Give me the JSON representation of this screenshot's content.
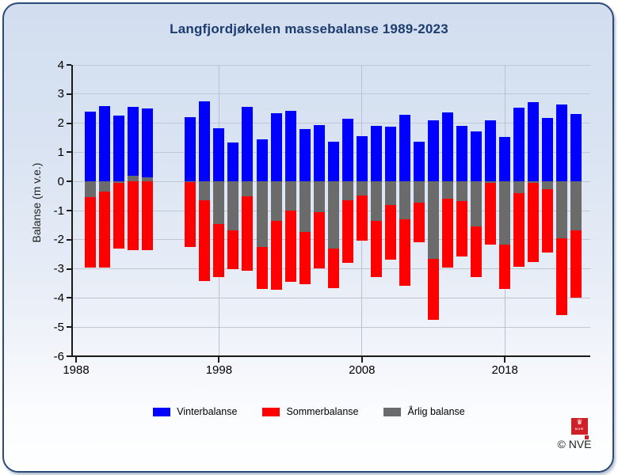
{
  "title": "Langfjordjøkelen massebalanse 1989-2023",
  "y_axis": {
    "label": "Balanse (m v.e.)",
    "ticks": [
      4,
      3,
      2,
      1,
      0,
      -1,
      -2,
      -3,
      -4,
      -5,
      -6
    ]
  },
  "x_axis": {
    "ticks": [
      1988,
      1998,
      2008,
      2018
    ]
  },
  "legend": {
    "items": [
      {
        "label": "Vinterbalanse",
        "color": "#0000fe"
      },
      {
        "label": "Sommerbalanse",
        "color": "#fe0000"
      },
      {
        "label": "Årlig balanse",
        "color": "#6b6b6b"
      }
    ]
  },
  "footer": {
    "copyright": "© NVE",
    "logo_text": "NVE"
  },
  "colors": {
    "winter": "#0000fe",
    "summer": "#fe0000",
    "annual": "#6b6b6b",
    "title": "#1d3c6f",
    "border": "#2c4a7a",
    "gridline": "#bfc7d5",
    "background_top": "#d2deef",
    "background_bottom": "#feffff"
  },
  "chart_data": {
    "type": "bar",
    "title": "Langfjordjøkelen massebalanse 1989-2023",
    "xlabel": "",
    "ylabel": "Balanse (m v.e.)",
    "ylim": [
      -6,
      4
    ],
    "grid": true,
    "legend_position": "bottom",
    "missing_years": [
      1994,
      1995
    ],
    "x": [
      1989,
      1990,
      1991,
      1992,
      1993,
      1996,
      1997,
      1998,
      1999,
      2000,
      2001,
      2002,
      2003,
      2004,
      2005,
      2006,
      2007,
      2008,
      2009,
      2010,
      2011,
      2012,
      2013,
      2014,
      2015,
      2016,
      2017,
      2018,
      2019,
      2020,
      2021,
      2022,
      2023
    ],
    "series": [
      {
        "name": "Vinterbalanse",
        "color": "#0000fe",
        "values": [
          2.4,
          2.6,
          2.25,
          2.55,
          2.5,
          2.22,
          2.76,
          1.82,
          1.33,
          2.55,
          1.45,
          2.35,
          2.43,
          1.8,
          1.93,
          1.36,
          2.15,
          1.55,
          1.91,
          1.88,
          2.29,
          1.36,
          2.09,
          2.38,
          1.91,
          1.73,
          2.11,
          1.52,
          2.53,
          2.73,
          2.18,
          2.65,
          2.31
        ]
      },
      {
        "name": "Sommerbalanse",
        "color": "#fe0000",
        "values": [
          -2.95,
          -2.95,
          -2.3,
          -2.35,
          -2.35,
          -2.25,
          -3.42,
          -3.27,
          -3.0,
          -3.07,
          -3.7,
          -3.71,
          -3.44,
          -3.53,
          -2.98,
          -3.66,
          -2.8,
          -2.03,
          -3.27,
          -2.68,
          -3.59,
          -2.08,
          -4.75,
          -2.96,
          -2.59,
          -3.27,
          -2.16,
          -3.69,
          -2.94,
          -2.78,
          -2.44,
          -4.6,
          -4.0
        ]
      },
      {
        "name": "Årlig balanse",
        "color": "#6b6b6b",
        "values": [
          -0.55,
          -0.35,
          -0.05,
          0.2,
          0.15,
          -0.03,
          -0.66,
          -1.45,
          -1.67,
          -0.52,
          -2.25,
          -1.36,
          -1.01,
          -1.73,
          -1.05,
          -2.3,
          -0.65,
          -0.48,
          -1.36,
          -0.8,
          -1.3,
          -0.72,
          -2.66,
          -0.58,
          -0.68,
          -1.54,
          -0.05,
          -2.17,
          -0.41,
          -0.05,
          -0.26,
          -1.95,
          -1.69
        ]
      }
    ]
  }
}
